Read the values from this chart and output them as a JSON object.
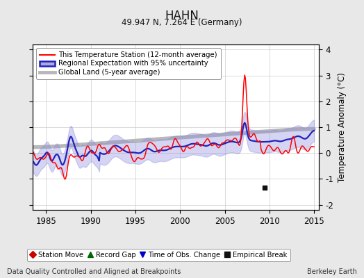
{
  "title": "HAHN",
  "subtitle": "49.947 N, 7.264 E (Germany)",
  "ylabel": "Temperature Anomaly (°C)",
  "xlabel_left": "Data Quality Controlled and Aligned at Breakpoints",
  "xlabel_right": "Berkeley Earth",
  "xlim": [
    1983.5,
    2015.5
  ],
  "ylim": [
    -2.2,
    4.2
  ],
  "yticks": [
    -2,
    -1,
    0,
    1,
    2,
    3,
    4
  ],
  "xticks": [
    1985,
    1990,
    1995,
    2000,
    2005,
    2010,
    2015
  ],
  "bg_color": "#e8e8e8",
  "plot_bg_color": "#ffffff",
  "grid_color": "#cccccc",
  "legend_items": [
    {
      "label": "This Temperature Station (12-month average)",
      "color": "#ff0000",
      "lw": 1.5
    },
    {
      "label": "Regional Expectation with 95% uncertainty",
      "color": "#3333cc",
      "lw": 2.0
    },
    {
      "label": "Global Land (5-year average)",
      "color": "#b0b0b0",
      "lw": 3.0
    }
  ],
  "marker_items": [
    {
      "label": "Station Move",
      "color": "#cc0000",
      "marker": "D"
    },
    {
      "label": "Record Gap",
      "color": "#006600",
      "marker": "^"
    },
    {
      "label": "Time of Obs. Change",
      "color": "#0000cc",
      "marker": "v"
    },
    {
      "label": "Empirical Break",
      "color": "#111111",
      "marker": "s"
    }
  ],
  "empirical_break_x": 2009.5,
  "empirical_break_y": -1.35
}
